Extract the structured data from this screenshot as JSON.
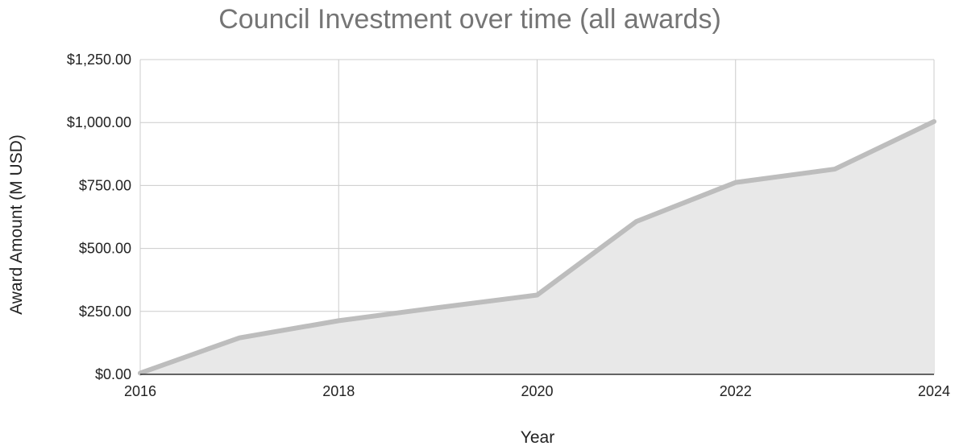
{
  "chart_data": {
    "type": "area",
    "title": "Council Investment over time (all awards)",
    "xlabel": "Year",
    "ylabel": "Award Amount (M USD)",
    "x": [
      2016,
      2017,
      2018,
      2019,
      2020,
      2021,
      2022,
      2023,
      2024
    ],
    "series": [
      {
        "values": [
          5,
          145,
          213,
          265,
          315,
          607,
          762,
          815,
          1004
        ]
      }
    ],
    "xlim": [
      2016,
      2024
    ],
    "ylim": [
      0,
      1250
    ],
    "x_ticks": [
      "2016",
      "2018",
      "2020",
      "2022",
      "2024"
    ],
    "x_tick_values": [
      2016,
      2018,
      2020,
      2022,
      2024
    ],
    "y_ticks": [
      "$0.00",
      "$250.00",
      "$500.00",
      "$750.00",
      "$1,000.00",
      "$1,250.00"
    ],
    "y_tick_values": [
      0,
      250,
      500,
      750,
      1000,
      1250
    ],
    "grid": true,
    "colors": {
      "line": "#bdbdbd",
      "fill": "#e8e8e8",
      "grid": "#cccccc",
      "title": "#757575",
      "axis": "#333333"
    }
  }
}
